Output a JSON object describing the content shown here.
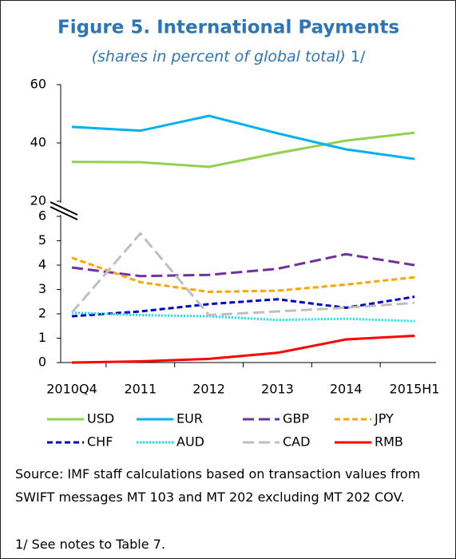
{
  "chart_data": {
    "type": "line",
    "title": "Figure 5. International Payments",
    "subtitle": "(shares in percent of global total)",
    "subtitle_note": "1/",
    "categories": [
      "2010Q4",
      "2011",
      "2012",
      "2013",
      "2014",
      "2015H1"
    ],
    "ylim": [
      0,
      6
    ],
    "yticks": [
      0,
      1,
      2,
      3,
      4,
      5,
      6
    ],
    "upper_ylim": [
      20,
      60
    ],
    "upper_yticks": [
      20,
      40,
      60
    ],
    "legend": "bottom",
    "series": [
      {
        "name": "USD",
        "color": "#92d050",
        "dash": "solid",
        "axis": "upper",
        "values": [
          33.5,
          33.4,
          31.8,
          36.5,
          40.8,
          43.5
        ]
      },
      {
        "name": "EUR",
        "color": "#00b0f0",
        "dash": "solid",
        "axis": "upper",
        "values": [
          45.5,
          44.2,
          49.3,
          43.3,
          37.8,
          34.5
        ]
      },
      {
        "name": "GBP",
        "color": "#7030a0",
        "dash": "longdash",
        "axis": "lower",
        "values": [
          3.9,
          3.55,
          3.6,
          3.85,
          4.45,
          4.0
        ]
      },
      {
        "name": "JPY",
        "color": "#ffa500",
        "dash": "dash",
        "axis": "lower",
        "values": [
          4.3,
          3.3,
          2.9,
          2.95,
          3.2,
          3.5
        ]
      },
      {
        "name": "CHF",
        "color": "#0000cc",
        "dash": "dash",
        "axis": "lower",
        "values": [
          1.9,
          2.1,
          2.4,
          2.6,
          2.25,
          2.7
        ]
      },
      {
        "name": "AUD",
        "color": "#00e5ee",
        "dash": "dot",
        "axis": "lower",
        "values": [
          2.05,
          1.95,
          1.9,
          1.75,
          1.8,
          1.7
        ]
      },
      {
        "name": "CAD",
        "color": "#bfbfbf",
        "dash": "longdash",
        "axis": "lower",
        "values": [
          2.05,
          5.3,
          1.95,
          2.1,
          2.25,
          2.45
        ]
      },
      {
        "name": "RMB",
        "color": "#ff0000",
        "dash": "solid",
        "axis": "lower",
        "values": [
          0.0,
          0.05,
          0.15,
          0.4,
          0.95,
          1.1
        ]
      }
    ]
  },
  "notes": {
    "source": "Source: IMF staff calculations based on transaction values from SWIFT messages MT 103 and MT 202 excluding MT 202 COV.",
    "footnote": "1/ See notes to Table 7."
  }
}
